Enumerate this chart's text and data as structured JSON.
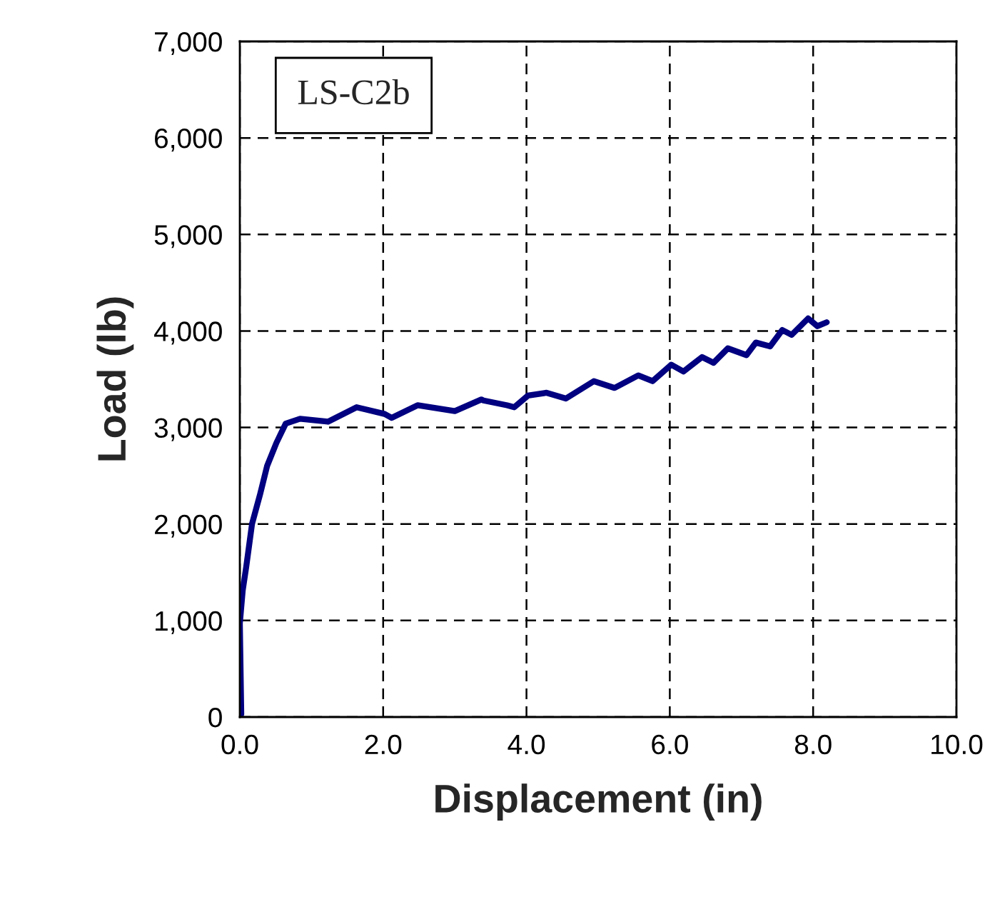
{
  "chart_data": {
    "type": "line",
    "xlabel": "Displacement (in)",
    "ylabel": "Load (lb)",
    "annotations": [
      "LS-C2b"
    ],
    "x": [
      0.0,
      0.02,
      0.0,
      0.04,
      0.09,
      0.17,
      0.28,
      0.38,
      0.51,
      0.64,
      0.84,
      1.23,
      1.63,
      2.02,
      2.12,
      2.48,
      3.0,
      3.37,
      3.4,
      3.73,
      3.83,
      4.02,
      4.28,
      4.55,
      4.94,
      5.23,
      5.56,
      5.76,
      6.02,
      6.19,
      6.45,
      6.61,
      6.81,
      7.07,
      7.2,
      7.4,
      7.57,
      7.7,
      7.93,
      8.06,
      8.19
    ],
    "series": [
      {
        "color": "#000080",
        "values": [
          0,
          30,
          970,
          1310,
          1560,
          2000,
          2300,
          2600,
          2840,
          3040,
          3090,
          3060,
          3210,
          3140,
          3100,
          3230,
          3170,
          3290,
          3280,
          3230,
          3210,
          3330,
          3360,
          3300,
          3480,
          3410,
          3540,
          3480,
          3650,
          3580,
          3730,
          3670,
          3820,
          3750,
          3880,
          3840,
          4010,
          3960,
          4130,
          4050,
          4090
        ]
      }
    ],
    "xlim": [
      0,
      10
    ],
    "ylim": [
      0,
      7000
    ],
    "xticks": [
      {
        "value": 0,
        "label": "0.0"
      },
      {
        "value": 2,
        "label": "2.0"
      },
      {
        "value": 4,
        "label": "4.0"
      },
      {
        "value": 6,
        "label": "6.0"
      },
      {
        "value": 8,
        "label": "8.0"
      },
      {
        "value": 10,
        "label": "10.0"
      }
    ],
    "yticks": [
      {
        "value": 0,
        "label": "0"
      },
      {
        "value": 1000,
        "label": "1,000"
      },
      {
        "value": 2000,
        "label": "2,000"
      },
      {
        "value": 3000,
        "label": "3,000"
      },
      {
        "value": 4000,
        "label": "4,000"
      },
      {
        "value": 5000,
        "label": "5,000"
      },
      {
        "value": 6000,
        "label": "6,000"
      },
      {
        "value": 7000,
        "label": "7,000"
      }
    ],
    "grid": true,
    "line_style": "solid",
    "marker": "none"
  }
}
